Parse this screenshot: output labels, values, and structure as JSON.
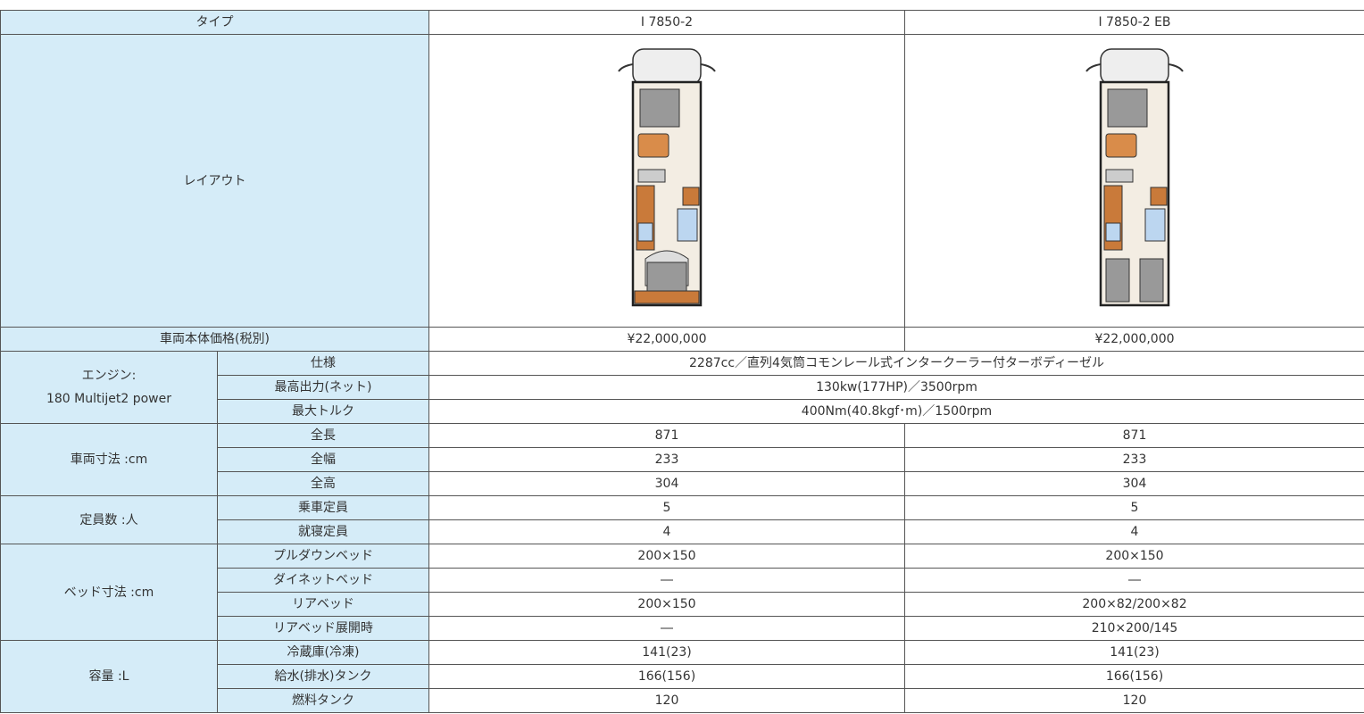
{
  "table": {
    "header": [
      "タイプ",
      "I 7850-2",
      "I 7850-2 EB"
    ],
    "layout_label": "レイアウト",
    "price": {
      "label": "車両本体価格(税別)",
      "values": [
        "¥22,000,000",
        "¥22,000,000"
      ]
    },
    "groups": [
      {
        "label": [
          "エンジン:",
          "180 Multijet2 power"
        ],
        "rows": [
          {
            "label": "仕様",
            "value": "2287cc／直列4気筒コモンレール式インタークーラー付ターボディーゼル"
          },
          {
            "label": "最高出力(ネット)",
            "value": "130kw(177HP)／3500rpm"
          },
          {
            "label": "最大トルク",
            "value": "400Nm(40.8kgf･m)／1500rpm"
          }
        ]
      },
      {
        "label": [
          "車両寸法 :cm"
        ],
        "rows": [
          {
            "label": "全長",
            "values": [
              "871",
              "871"
            ]
          },
          {
            "label": "全幅",
            "values": [
              "233",
              "233"
            ]
          },
          {
            "label": "全高",
            "values": [
              "304",
              "304"
            ]
          }
        ]
      },
      {
        "label": [
          "定員数 :人"
        ],
        "rows": [
          {
            "label": "乗車定員",
            "values": [
              "5",
              "5"
            ]
          },
          {
            "label": "就寝定員",
            "values": [
              "4",
              "4"
            ]
          }
        ]
      },
      {
        "label": [
          "ベッド寸法 :cm"
        ],
        "rows": [
          {
            "label": "プルダウンベッド",
            "values": [
              "200×150",
              "200×150"
            ]
          },
          {
            "label": "ダイネットベッド",
            "values": [
              "―",
              "―"
            ]
          },
          {
            "label": "リアベッド",
            "values": [
              "200×150",
              "200×82/200×82"
            ]
          },
          {
            "label": "リアベッド展開時",
            "values": [
              "―",
              "210×200/145"
            ]
          }
        ]
      },
      {
        "label": [
          "容量 :L"
        ],
        "rows": [
          {
            "label": "冷蔵庫(冷凍)",
            "values": [
              "141(23)",
              "141(23)"
            ]
          },
          {
            "label": "給水(排水)タンク",
            "values": [
              "166(156)",
              "166(156)"
            ]
          },
          {
            "label": "燃料タンク",
            "values": [
              "120",
              "120"
            ]
          }
        ]
      }
    ]
  }
}
